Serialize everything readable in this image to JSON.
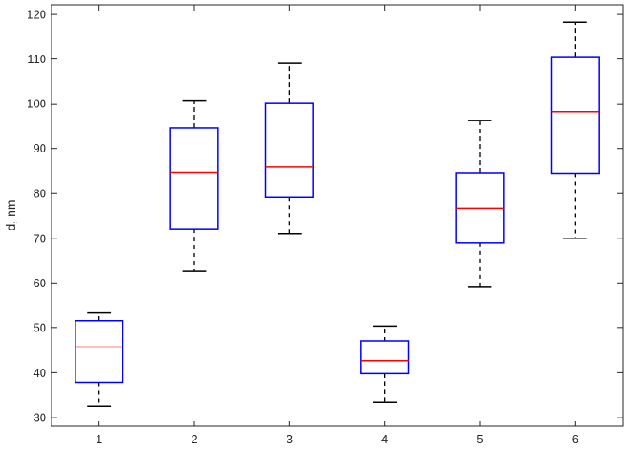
{
  "chart_data": {
    "type": "box",
    "ylabel": "d, nm",
    "xlabel": "",
    "ylim": [
      28,
      122
    ],
    "yticks": [
      30,
      40,
      50,
      60,
      70,
      80,
      90,
      100,
      110,
      120
    ],
    "categories": [
      "1",
      "2",
      "3",
      "4",
      "5",
      "6"
    ],
    "boxes": [
      {
        "category": "1",
        "min": 32.5,
        "q1": 37.8,
        "median": 45.7,
        "q3": 51.6,
        "max": 53.4
      },
      {
        "category": "2",
        "min": 62.6,
        "q1": 72.1,
        "median": 84.7,
        "q3": 94.7,
        "max": 100.7
      },
      {
        "category": "3",
        "min": 71.0,
        "q1": 79.2,
        "median": 86.0,
        "q3": 100.2,
        "max": 109.1
      },
      {
        "category": "4",
        "min": 33.3,
        "q1": 39.8,
        "median": 42.7,
        "q3": 47.0,
        "max": 50.3
      },
      {
        "category": "5",
        "min": 59.1,
        "q1": 69.0,
        "median": 76.6,
        "q3": 84.6,
        "max": 96.3
      },
      {
        "category": "6",
        "min": 70.0,
        "q1": 84.5,
        "median": 98.3,
        "q3": 110.5,
        "max": 118.2
      }
    ],
    "grid": false,
    "colors": {
      "box": "#0000ff",
      "median": "#ff0000",
      "whisker": "#000000",
      "axis": "#262626"
    }
  }
}
